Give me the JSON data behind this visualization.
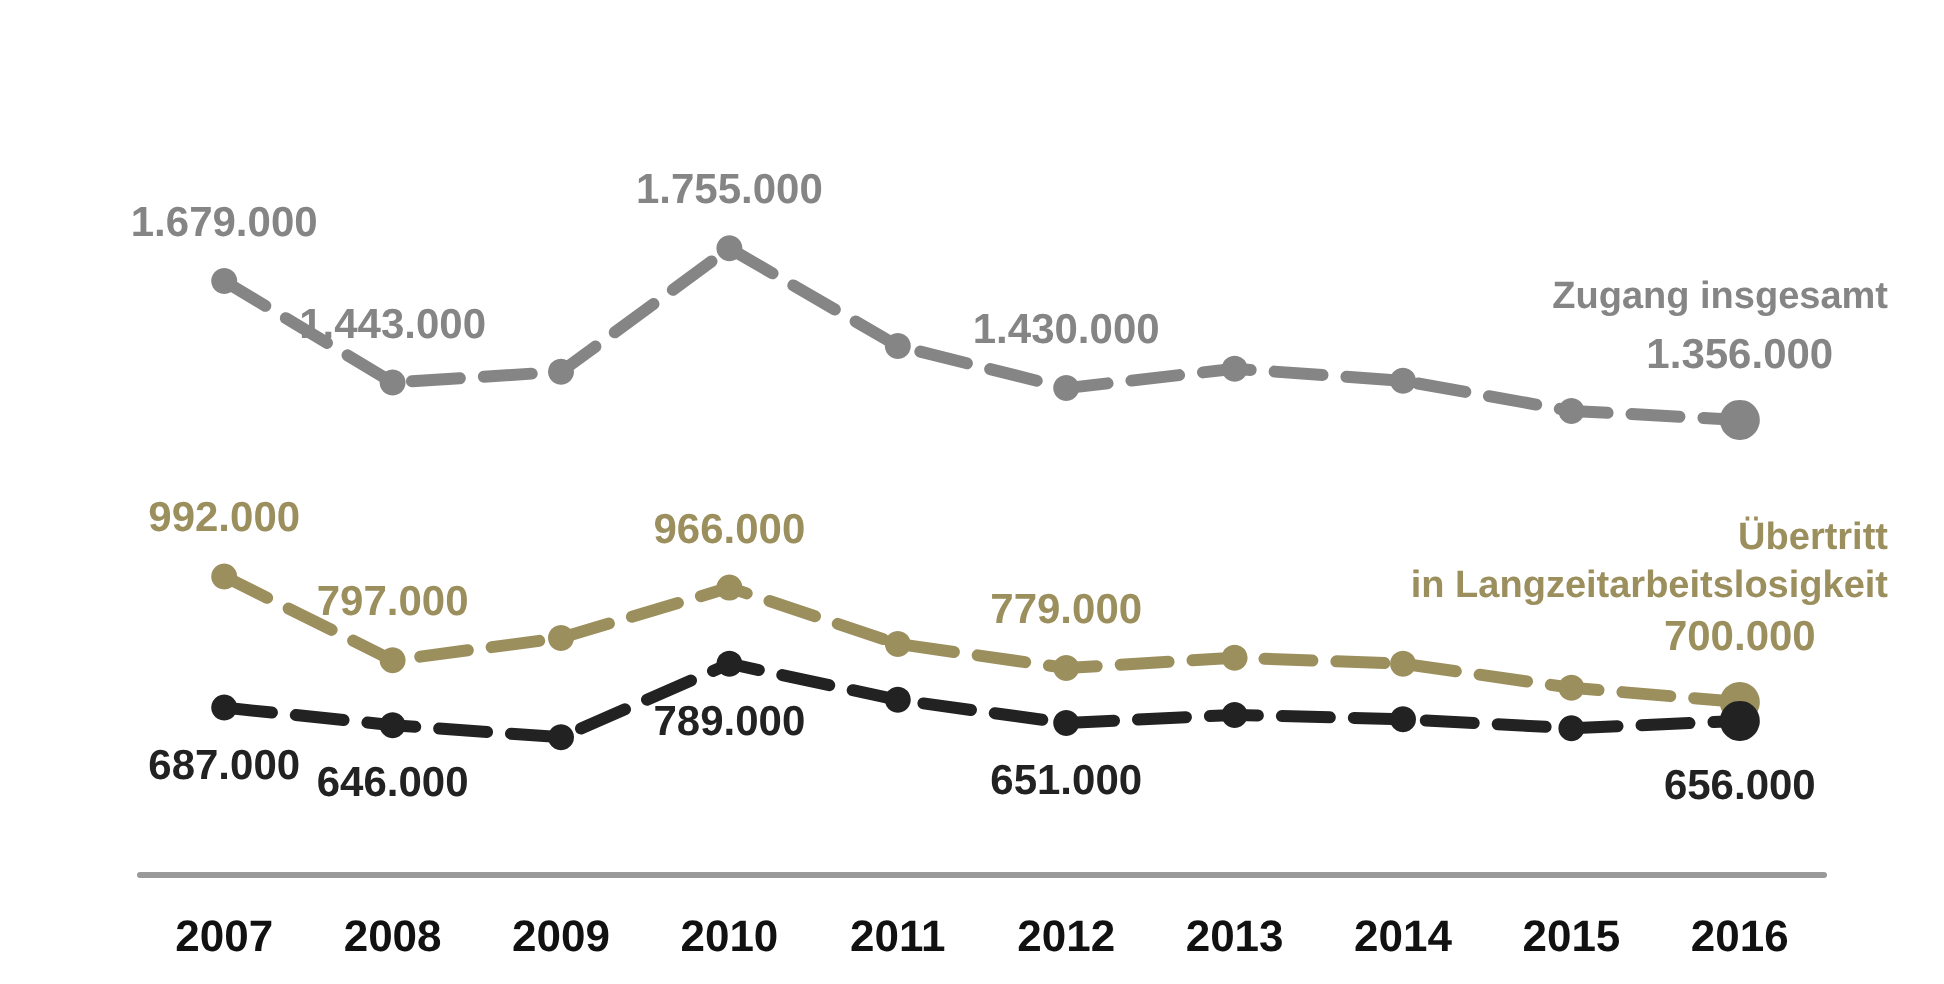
{
  "chart_data": {
    "type": "line",
    "categories": [
      "2007",
      "2008",
      "2009",
      "2010",
      "2011",
      "2012",
      "2013",
      "2014",
      "2015",
      "2016"
    ],
    "series": [
      {
        "name": "Zugang insgesamt",
        "color": "#858585",
        "values": [
          1679000,
          1443000,
          1468000,
          1755000,
          1528000,
          1430000,
          1475000,
          1447000,
          1377000,
          1356000
        ],
        "value_labels": [
          "1.679.000",
          "1.443.000",
          null,
          "1.755.000",
          null,
          "1.430.000",
          null,
          null,
          null,
          "1.356.000"
        ]
      },
      {
        "name": "Übertritt\nin Langzeitarbeitslosigkeit",
        "color": "#9c8f5e",
        "values": [
          992000,
          797000,
          849000,
          966000,
          835000,
          779000,
          803000,
          789000,
          733000,
          700000
        ],
        "value_labels": [
          "992.000",
          "797.000",
          null,
          "966.000",
          null,
          "779.000",
          null,
          null,
          null,
          "700.000"
        ]
      },
      {
        "color": "#222222",
        "values": [
          687000,
          646000,
          618000,
          789000,
          705000,
          651000,
          670000,
          660000,
          639000,
          656000
        ],
        "value_labels": [
          "687.000",
          "646.000",
          null,
          "789.000",
          null,
          "651.000",
          null,
          null,
          null,
          "656.000"
        ]
      }
    ],
    "marker": "circle",
    "line_style": "dashed",
    "grid": false,
    "legend": false,
    "tick_labels": "x"
  }
}
